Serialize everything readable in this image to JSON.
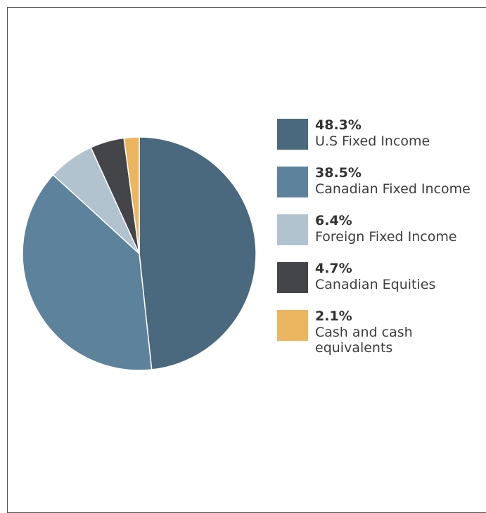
{
  "chart_data": {
    "type": "pie",
    "categories": [
      "U.S Fixed Income",
      "Canadian Fixed Income",
      "Foreign Fixed Income",
      "Canadian Equities",
      "Cash and cash equivalents"
    ],
    "values": [
      48.3,
      38.5,
      6.4,
      4.7,
      2.1
    ],
    "value_labels": [
      "48.3%",
      "38.5%",
      "6.4%",
      "4.7%",
      "2.1%"
    ],
    "colors": [
      "#4a687e",
      "#5d829c",
      "#b0c3cf",
      "#444548",
      "#ecb55f"
    ],
    "start_angle": "12 o'clock",
    "direction": "clockwise",
    "legend_placement": "right"
  }
}
